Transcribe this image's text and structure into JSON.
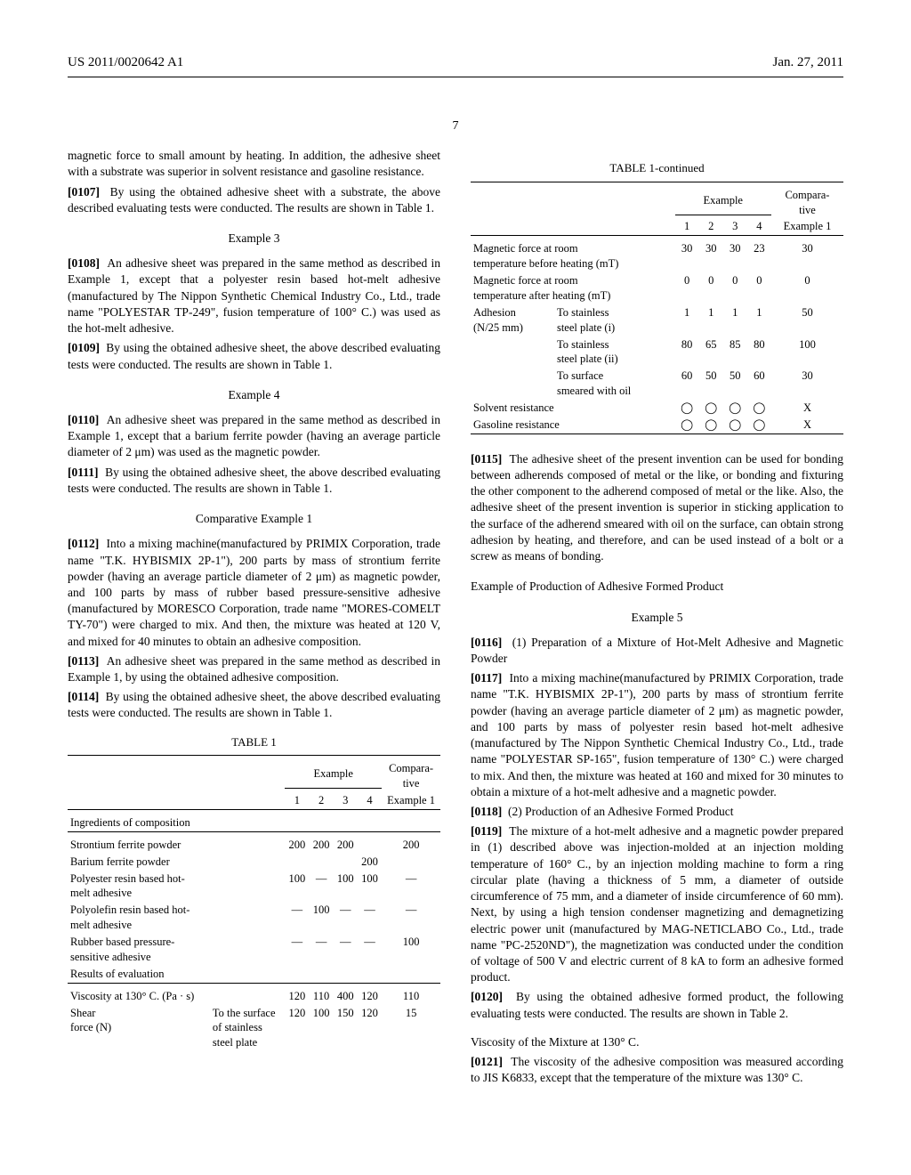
{
  "header": {
    "left": "US 2011/0020642 A1",
    "right": "Jan. 27, 2011"
  },
  "pagenum": "7",
  "col1": {
    "p1": "magnetic force to small amount by heating. In addition, the adhesive sheet with a substrate was superior in solvent resistance and gasoline resistance.",
    "p2_num": "[0107]",
    "p2": "By using the obtained adhesive sheet with a substrate, the above described evaluating tests were conducted. The results are shown in Table 1.",
    "ex3": "Example 3",
    "p3_num": "[0108]",
    "p3": "An adhesive sheet was prepared in the same method as described in Example 1, except that a polyester resin based hot-melt adhesive (manufactured by The Nippon Synthetic Chemical Industry Co., Ltd., trade name \"POLYESTAR TP-249\", fusion temperature of 100° C.) was used as the hot-melt adhesive.",
    "p4_num": "[0109]",
    "p4": "By using the obtained adhesive sheet, the above described evaluating tests were conducted. The results are shown in Table 1.",
    "ex4": "Example 4",
    "p5_num": "[0110]",
    "p5": "An adhesive sheet was prepared in the same method as described in Example 1, except that a barium ferrite powder (having an average particle diameter of 2 μm) was used as the magnetic powder.",
    "p6_num": "[0111]",
    "p6": "By using the obtained adhesive sheet, the above described evaluating tests were conducted. The results are shown in Table 1.",
    "comp1": "Comparative Example 1",
    "p7_num": "[0112]",
    "p7": "Into a mixing machine(manufactured by PRIMIX Corporation, trade name \"T.K. HYBISMIX 2P-1\"), 200 parts by mass of strontium ferrite powder (having an average particle diameter of 2 μm) as magnetic powder, and 100 parts by mass of rubber based pressure-sensitive adhesive (manufactured by MORESCO Corporation, trade name \"MORES-COMELT TY-70\") were charged to mix. And then, the mixture was heated at 120 V, and mixed for 40 minutes to obtain an adhesive composition.",
    "p8_num": "[0113]",
    "p8": "An adhesive sheet was prepared in the same method as described in Example 1, by using the obtained adhesive composition.",
    "p9_num": "[0114]",
    "p9": "By using the obtained adhesive sheet, the above described evaluating tests were conducted. The results are shown in Table 1."
  },
  "table1": {
    "title": "TABLE 1",
    "head_example": "Example",
    "head_comp": "Compara-\ntive",
    "cols": [
      "1",
      "2",
      "3",
      "4",
      "Example 1"
    ],
    "sec_ing": "Ingredients of composition",
    "rows_ing": [
      {
        "label": "Strontium ferrite powder",
        "v": [
          "200",
          "200",
          "200",
          "",
          "200"
        ]
      },
      {
        "label": "Barium ferrite powder",
        "v": [
          "",
          "",
          "",
          "200",
          ""
        ]
      },
      {
        "label": "Polyester resin based hot-\nmelt adhesive",
        "v": [
          "100",
          "—",
          "100",
          "100",
          "—"
        ]
      },
      {
        "label": "Polyolefin resin based hot-\nmelt adhesive",
        "v": [
          "—",
          "100",
          "—",
          "—",
          "—"
        ]
      },
      {
        "label": "Rubber based pressure-\nsensitive adhesive",
        "v": [
          "—",
          "—",
          "—",
          "—",
          "100"
        ]
      }
    ],
    "sec_res": "Results of evaluation",
    "rows_res": [
      {
        "label": "Viscosity at 130° C. (Pa · s)",
        "sub": "",
        "v": [
          "120",
          "110",
          "400",
          "120",
          "110"
        ]
      },
      {
        "label": "Shear\nforce (N)",
        "sub": "To the surface\nof stainless\nsteel plate",
        "v": [
          "120",
          "100",
          "150",
          "120",
          "15"
        ]
      }
    ]
  },
  "table1c": {
    "title": "TABLE 1-continued",
    "head_example": "Example",
    "head_comp": "Compara-\ntive",
    "cols": [
      "1",
      "2",
      "3",
      "4",
      "Example 1"
    ],
    "rows": [
      {
        "label": "Magnetic force at room\ntemperature before heating (mT)",
        "sub": "",
        "v": [
          "30",
          "30",
          "30",
          "23",
          "30"
        ]
      },
      {
        "label": "Magnetic force at room\ntemperature after heating (mT)",
        "sub": "",
        "v": [
          "0",
          "0",
          "0",
          "0",
          "0"
        ]
      },
      {
        "label": "Adhesion\n(N/25 mm)",
        "sub": "To stainless\nsteel plate (i)",
        "v": [
          "1",
          "1",
          "1",
          "1",
          "50"
        ]
      },
      {
        "label": "",
        "sub": "To stainless\nsteel plate (ii)",
        "v": [
          "80",
          "65",
          "85",
          "80",
          "100"
        ]
      },
      {
        "label": "",
        "sub": "To surface\nsmeared with oil",
        "v": [
          "60",
          "50",
          "50",
          "60",
          "30"
        ]
      },
      {
        "label": "Solvent resistance",
        "sub": "",
        "v": [
          "◯",
          "◯",
          "◯",
          "◯",
          "X"
        ]
      },
      {
        "label": "Gasoline resistance",
        "sub": "",
        "v": [
          "◯",
          "◯",
          "◯",
          "◯",
          "X"
        ]
      }
    ]
  },
  "col2": {
    "p1_num": "[0115]",
    "p1": "The adhesive sheet of the present invention can be used for bonding between adherends composed of metal or the like, or bonding and fixturing the other component to the adherend composed of metal or the like. Also, the adhesive sheet of the present invention is superior in sticking application to the surface of the adherend smeared with oil on the surface, can obtain strong adhesion by heating, and therefore, and can be used instead of a bolt or a screw as means of bonding.",
    "exprod": "Example of Production of Adhesive Formed Product",
    "ex5": "Example 5",
    "p2_num": "[0116]",
    "p2": "(1) Preparation of a Mixture of Hot-Melt Adhesive and Magnetic Powder",
    "p3_num": "[0117]",
    "p3": "Into a mixing machine(manufactured by PRIMIX Corporation, trade name \"T.K. HYBISMIX 2P-1\"), 200 parts by mass of strontium ferrite powder (having an average particle diameter of 2 μm) as magnetic powder, and 100 parts by mass of polyester resin based hot-melt adhesive (manufactured by The Nippon Synthetic Chemical Industry Co., Ltd., trade name \"POLYESTAR SP-165\", fusion temperature of 130° C.) were charged to mix. And then, the mixture was heated at 160 and mixed for 30 minutes to obtain a mixture of a hot-melt adhesive and a magnetic powder.",
    "p4_num": "[0118]",
    "p4": "(2) Production of an Adhesive Formed Product",
    "p5_num": "[0119]",
    "p5": "The mixture of a hot-melt adhesive and a magnetic powder prepared in (1) described above was injection-molded at an injection molding temperature of 160° C., by an injection molding machine to form a ring circular plate (having a thickness of 5 mm, a diameter of outside circumference of 75 mm, and a diameter of inside circumference of 60 mm). Next, by using a high tension condenser magnetizing and demagnetizing electric power unit (manufactured by MAG-NETICLABO Co., Ltd., trade name \"PC-2520ND\"), the magnetization was conducted under the condition of voltage of 500 V and electric current of 8 kA to form an adhesive formed product.",
    "p6_num": "[0120]",
    "p6": "By using the obtained adhesive formed product, the following evaluating tests were conducted. The results are shown in Table 2.",
    "visc": "Viscosity of the Mixture at 130° C.",
    "p7_num": "[0121]",
    "p7": "The viscosity of the adhesive composition was measured according to JIS K6833, except that the temperature of the mixture was 130° C."
  }
}
